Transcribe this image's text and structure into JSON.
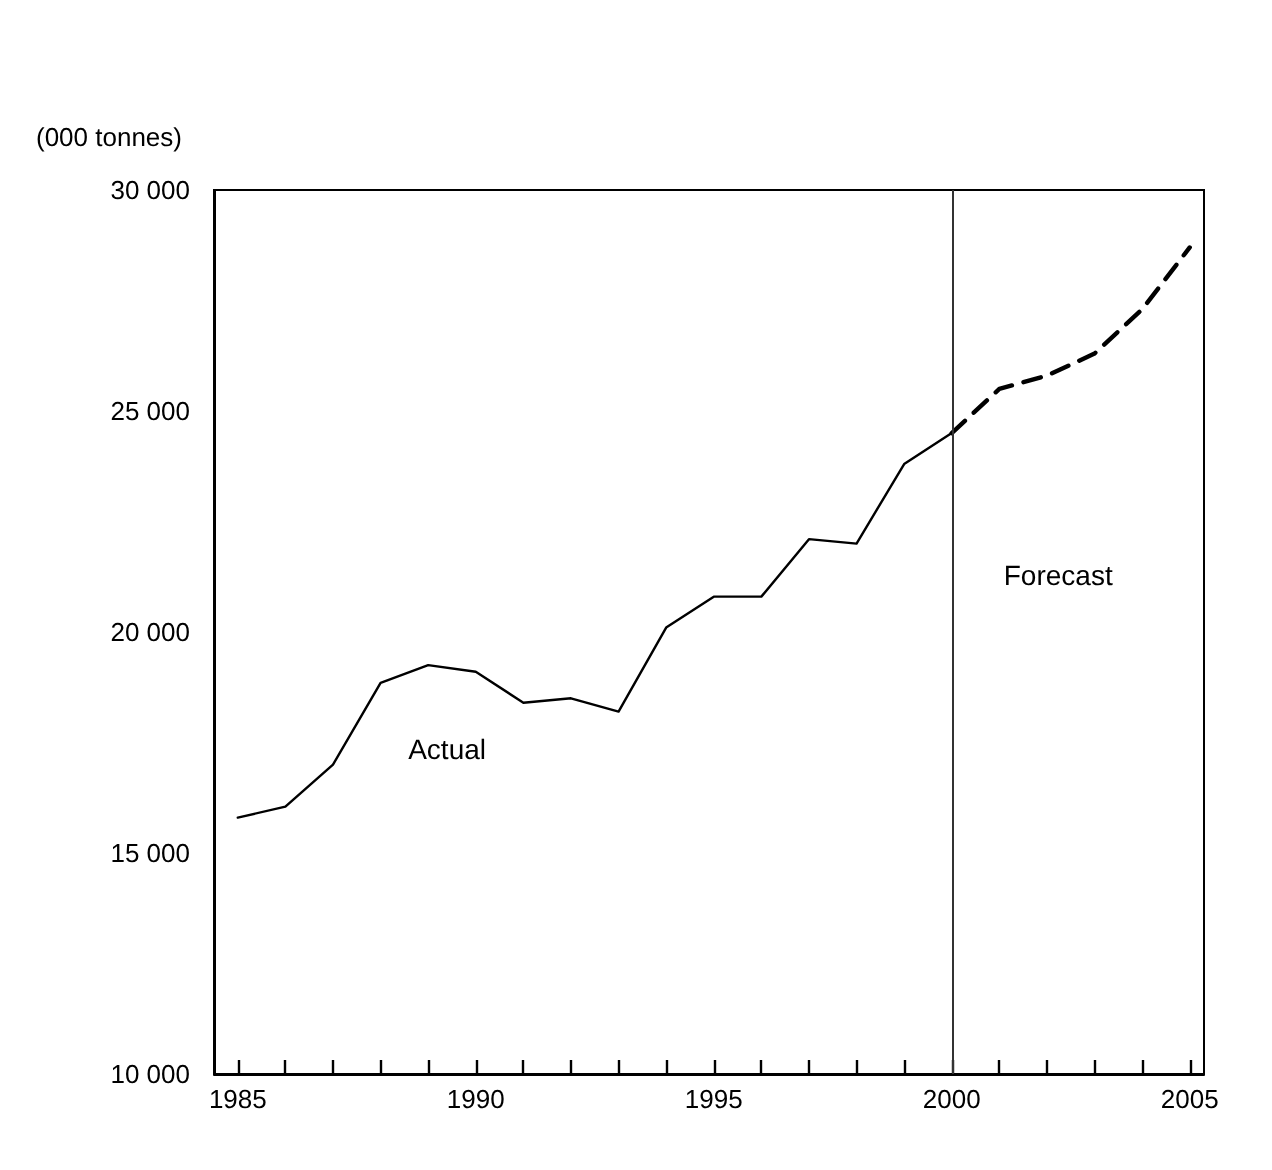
{
  "chart_data": {
    "type": "line",
    "ylabel": "(000 tonnes)",
    "series": [
      {
        "name": "Actual",
        "color": "#000000",
        "line_style": "solid",
        "x": [
          1985,
          1986,
          1987,
          1988,
          1989,
          1990,
          1991,
          1992,
          1993,
          1994,
          1995,
          1996,
          1997,
          1998,
          1999,
          2000
        ],
        "values": [
          15800,
          16050,
          17000,
          18850,
          19250,
          19100,
          18400,
          18500,
          18200,
          20100,
          20800,
          20800,
          22100,
          22000,
          23800,
          24500
        ]
      },
      {
        "color": "#000000",
        "line_style": "dashed",
        "x": [
          2000,
          2001,
          2002,
          2003,
          2004,
          2005
        ],
        "values": [
          24500,
          25500,
          25800,
          26300,
          27300,
          28700
        ]
      }
    ],
    "xlim": [
      1984.5,
      2005.3
    ],
    "xticks": [
      1985,
      {
        "value": 1986,
        "label": null
      },
      {
        "value": 1987,
        "label": null
      },
      {
        "value": 1988,
        "label": null
      },
      {
        "value": 1989,
        "label": null
      },
      1990,
      {
        "value": 1991,
        "label": null
      },
      {
        "value": 1992,
        "label": null
      },
      {
        "value": 1993,
        "label": null
      },
      {
        "value": 1994,
        "label": null
      },
      1995,
      {
        "value": 1996,
        "label": null
      },
      {
        "value": 1997,
        "label": null
      },
      {
        "value": 1998,
        "label": null
      },
      {
        "value": 1999,
        "label": null
      },
      2000,
      {
        "value": 2001,
        "label": null
      },
      {
        "value": 2002,
        "label": null
      },
      {
        "value": 2003,
        "label": null
      },
      {
        "value": 2004,
        "label": null
      },
      2005
    ],
    "ylim": [
      10000,
      30000
    ],
    "yticks": [
      {
        "value": 10000,
        "label": "10 000"
      },
      {
        "value": 15000,
        "label": "15 000"
      },
      {
        "value": 20000,
        "label": "20 000"
      },
      {
        "value": 25000,
        "label": "25 000"
      },
      {
        "value": 30000,
        "label": "30 000"
      }
    ],
    "ref_lines": [
      {
        "axis": "x",
        "value": 2000,
        "color": "#333333",
        "label": "Forecast"
      }
    ],
    "grid": false,
    "legend": false,
    "marker": "none"
  }
}
